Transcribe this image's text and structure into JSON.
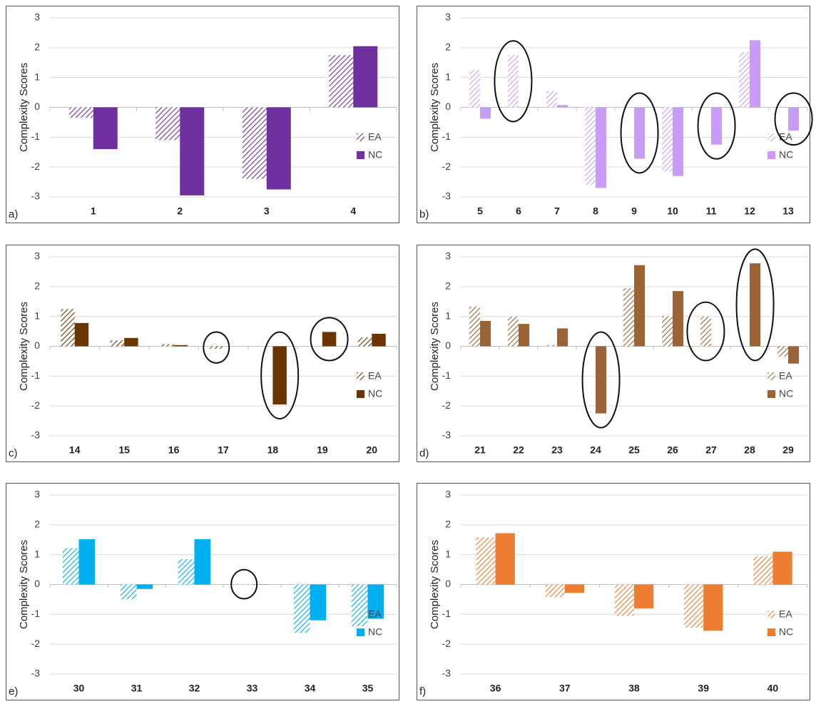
{
  "chart_data": [
    {
      "type": "bar",
      "panel_label": "a)",
      "y_label": "Complexity Scores",
      "categories": [
        "1",
        "2",
        "3",
        "4"
      ],
      "series": [
        {
          "name": "EA",
          "color": "#7030a0",
          "hatched": true,
          "values": [
            -0.35,
            -1.1,
            -2.4,
            1.75
          ]
        },
        {
          "name": "NC",
          "color": "#7030a0",
          "hatched": false,
          "values": [
            -1.4,
            -2.95,
            -2.75,
            2.05
          ]
        }
      ],
      "ylim": [
        -3,
        3
      ],
      "yticks": [
        -3,
        -2,
        -1,
        0,
        1,
        2,
        3
      ],
      "grid": true
    },
    {
      "type": "bar",
      "panel_label": "b)",
      "y_label": "Complexity Scores",
      "categories": [
        "5",
        "6",
        "7",
        "8",
        "9",
        "10",
        "11",
        "12",
        "13"
      ],
      "series": [
        {
          "name": "EA",
          "color": "#c99cf7",
          "hatched": true,
          "values": [
            1.25,
            1.75,
            0.55,
            -2.6,
            0,
            -2.15,
            0,
            1.85,
            0
          ]
        },
        {
          "name": "NC",
          "color": "#c99cf7",
          "hatched": false,
          "values": [
            -0.38,
            0,
            0.08,
            -2.7,
            -1.72,
            -2.3,
            -1.25,
            2.25,
            -0.78
          ]
        }
      ],
      "ylim": [
        -3,
        3
      ],
      "yticks": [
        -3,
        -2,
        -1,
        0,
        1,
        2,
        3
      ],
      "grid": true
    },
    {
      "type": "bar",
      "panel_label": "c)",
      "y_label": "Complexity Scores",
      "categories": [
        "14",
        "15",
        "16",
        "17",
        "18",
        "19",
        "20"
      ],
      "series": [
        {
          "name": "EA",
          "color": "#6b3500",
          "hatched": true,
          "values": [
            1.25,
            0.2,
            0.07,
            -0.08,
            0,
            0,
            0.3
          ]
        },
        {
          "name": "NC",
          "color": "#6b3500",
          "hatched": false,
          "values": [
            0.78,
            0.28,
            0.04,
            0,
            -1.95,
            0.48,
            0.42
          ]
        }
      ],
      "ylim": [
        -3,
        3
      ],
      "yticks": [
        -3,
        -2,
        -1,
        0,
        1,
        2,
        3
      ],
      "grid": true
    },
    {
      "type": "bar",
      "panel_label": "d)",
      "y_label": "Complexity Scores",
      "categories": [
        "21",
        "22",
        "23",
        "24",
        "25",
        "26",
        "27",
        "28",
        "29"
      ],
      "series": [
        {
          "name": "EA",
          "color": "#9c6434",
          "hatched": true,
          "values": [
            1.33,
            1.0,
            0.05,
            0,
            1.95,
            1.02,
            1.0,
            0,
            -0.35
          ]
        },
        {
          "name": "NC",
          "color": "#9c6434",
          "hatched": false,
          "values": [
            0.85,
            0.75,
            0.6,
            -2.25,
            2.72,
            1.85,
            0,
            2.78,
            -0.58
          ]
        }
      ],
      "ylim": [
        -3,
        3
      ],
      "yticks": [
        -3,
        -2,
        -1,
        0,
        1,
        2,
        3
      ],
      "grid": true
    },
    {
      "type": "bar",
      "panel_label": "e)",
      "y_label": "Complexity Scores",
      "categories": [
        "30",
        "31",
        "32",
        "33",
        "34",
        "35"
      ],
      "series": [
        {
          "name": "EA",
          "color": "#00b0f0",
          "hatched": true,
          "values": [
            1.22,
            -0.5,
            0.85,
            0.02,
            -1.62,
            -1.4
          ]
        },
        {
          "name": "NC",
          "color": "#00b0f0",
          "hatched": false,
          "values": [
            1.52,
            -0.15,
            1.52,
            0.01,
            -1.2,
            -1.15
          ]
        }
      ],
      "ylim": [
        -3,
        3
      ],
      "yticks": [
        -3,
        -2,
        -1,
        0,
        1,
        2,
        3
      ],
      "grid": true
    },
    {
      "type": "bar",
      "panel_label": "f)",
      "y_label": "Complexity Scores",
      "categories": [
        "36",
        "37",
        "38",
        "39",
        "40"
      ],
      "series": [
        {
          "name": "EA",
          "color": "#ed7d31",
          "hatched": true,
          "values": [
            1.58,
            -0.42,
            -1.05,
            -1.45,
            0.95
          ]
        },
        {
          "name": "NC",
          "color": "#ed7d31",
          "hatched": false,
          "values": [
            1.72,
            -0.28,
            -0.8,
            -1.55,
            1.1
          ]
        }
      ],
      "ylim": [
        -3,
        3
      ],
      "yticks": [
        -3,
        -2,
        -1,
        0,
        1,
        2,
        3
      ],
      "grid": true
    }
  ]
}
